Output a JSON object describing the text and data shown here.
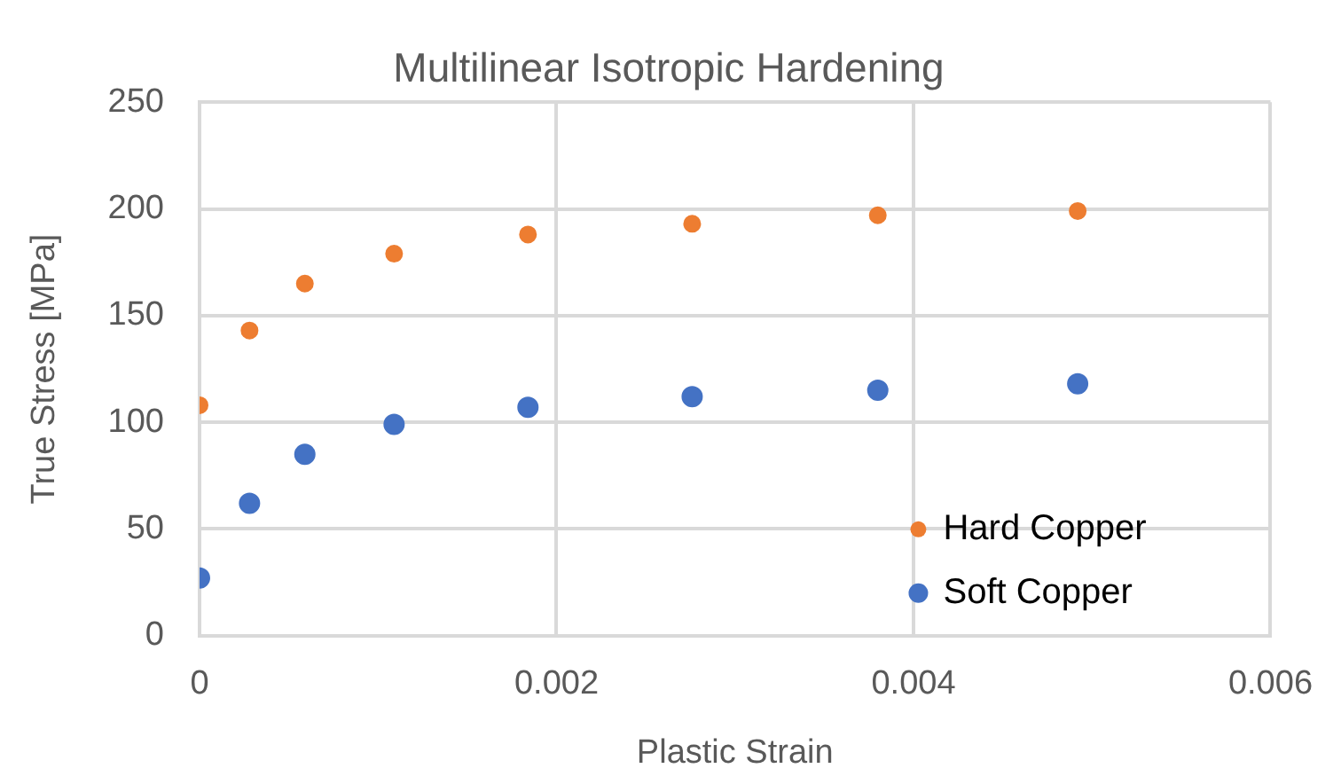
{
  "chart_data": {
    "type": "scatter",
    "title": "Multilinear Isotropic Hardening",
    "xlabel": "Plastic Strain",
    "ylabel": "True Stress [MPa]",
    "xlim": [
      0,
      0.006
    ],
    "xticks": [
      0,
      0.002,
      0.004,
      0.006
    ],
    "ylim": [
      0,
      250
    ],
    "yticks": [
      0,
      50,
      100,
      150,
      200,
      250
    ],
    "grid": true,
    "legend": "bottom right",
    "marker": "circle",
    "series": [
      {
        "name": "Hard Copper",
        "color": "#ed7d31",
        "x": [
          0,
          0.00028,
          0.00059,
          0.00109,
          0.00184,
          0.00276,
          0.0038,
          0.00492
        ],
        "values": [
          108,
          143,
          165,
          179,
          188,
          193,
          197,
          199
        ]
      },
      {
        "name": "Soft Copper",
        "color": "#4472c4",
        "x": [
          0,
          0.00028,
          0.00059,
          0.00109,
          0.00184,
          0.00276,
          0.0038,
          0.00492
        ],
        "values": [
          27,
          62,
          85,
          99,
          107,
          112,
          115,
          118
        ]
      }
    ]
  }
}
